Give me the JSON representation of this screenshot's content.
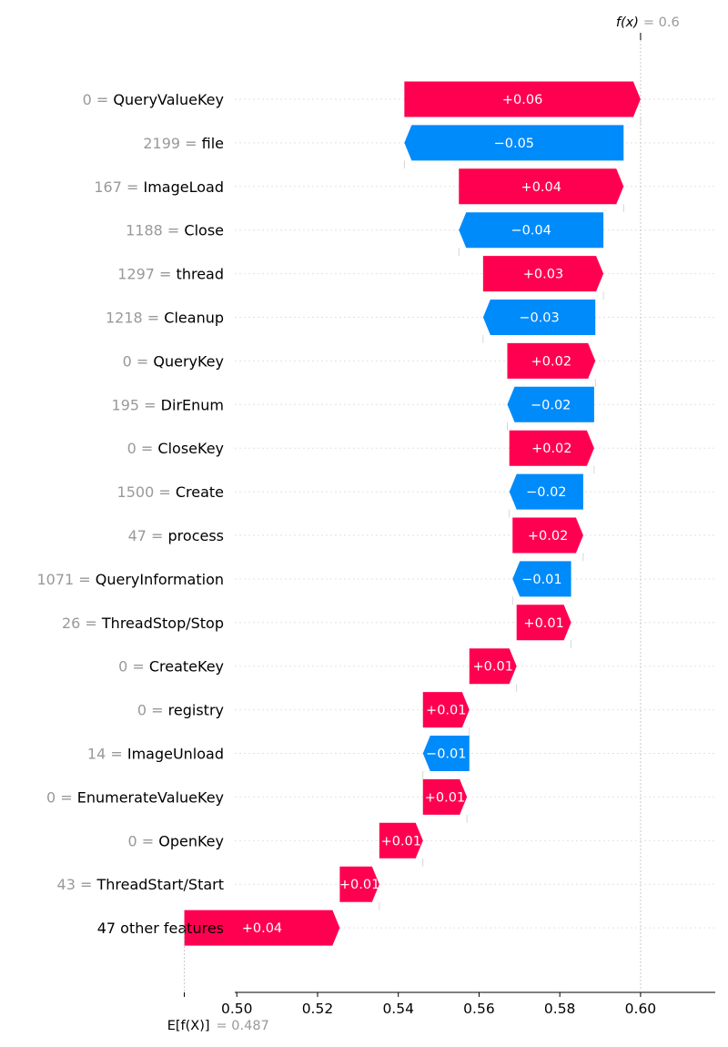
{
  "chart_data": {
    "type": "waterfall",
    "fx": {
      "label": "f(x)",
      "value_text": "= 0.6",
      "value": 0.6
    },
    "ex": {
      "label": "E[f(X)]",
      "value_text": "= 0.487",
      "value": 0.487
    },
    "xlim": [
      0.4995,
      0.6185
    ],
    "xticks": [
      0.5,
      0.52,
      0.54,
      0.56,
      0.58,
      0.6
    ],
    "xtick_labels": [
      "0.50",
      "0.52",
      "0.54",
      "0.56",
      "0.58",
      "0.60"
    ],
    "colors": {
      "positive": "#ff0051",
      "negative": "#008bfb"
    },
    "features": [
      {
        "value": "0",
        "name": "QueryValueKey",
        "start": 0.5415,
        "end": 0.6,
        "label": "+0.06"
      },
      {
        "value": "2199",
        "name": "file",
        "start": 0.5958,
        "end": 0.5415,
        "label": "−0.05"
      },
      {
        "value": "167",
        "name": "ImageLoad",
        "start": 0.555,
        "end": 0.5958,
        "label": "+0.04"
      },
      {
        "value": "1188",
        "name": "Close",
        "start": 0.5908,
        "end": 0.555,
        "label": "−0.04"
      },
      {
        "value": "1297",
        "name": "thread",
        "start": 0.561,
        "end": 0.5908,
        "label": "+0.03"
      },
      {
        "value": "1218",
        "name": "Cleanup",
        "start": 0.5888,
        "end": 0.561,
        "label": "−0.03"
      },
      {
        "value": "0",
        "name": "QueryKey",
        "start": 0.567,
        "end": 0.5888,
        "label": "+0.02"
      },
      {
        "value": "195",
        "name": "DirEnum",
        "start": 0.5885,
        "end": 0.567,
        "label": "−0.02"
      },
      {
        "value": "0",
        "name": "CloseKey",
        "start": 0.5675,
        "end": 0.5885,
        "label": "+0.02"
      },
      {
        "value": "1500",
        "name": "Create",
        "start": 0.5858,
        "end": 0.5675,
        "label": "−0.02"
      },
      {
        "value": "47",
        "name": "process",
        "start": 0.5683,
        "end": 0.5858,
        "label": "+0.02"
      },
      {
        "value": "1071",
        "name": "QueryInformation",
        "start": 0.5828,
        "end": 0.5683,
        "label": "−0.01"
      },
      {
        "value": "26",
        "name": "ThreadStop/Stop",
        "start": 0.5693,
        "end": 0.5828,
        "label": "+0.01"
      },
      {
        "value": "0",
        "name": "CreateKey",
        "start": 0.5576,
        "end": 0.5693,
        "label": "+0.01"
      },
      {
        "value": "0",
        "name": "registry",
        "start": 0.5461,
        "end": 0.5576,
        "label": "+0.01"
      },
      {
        "value": "14",
        "name": "ImageUnload",
        "start": 0.5576,
        "end": 0.5461,
        "label": "−0.01"
      },
      {
        "value": "0",
        "name": "EnumerateValueKey",
        "start": 0.5461,
        "end": 0.557,
        "label": "+0.01"
      },
      {
        "value": "0",
        "name": "OpenKey",
        "start": 0.5353,
        "end": 0.5461,
        "label": "+0.01"
      },
      {
        "value": "43",
        "name": "ThreadStart/Start",
        "start": 0.5255,
        "end": 0.5353,
        "label": "+0.01"
      },
      {
        "value": "",
        "name": "47 other features",
        "start": 0.487,
        "end": 0.5255,
        "label": "+0.04"
      }
    ]
  }
}
